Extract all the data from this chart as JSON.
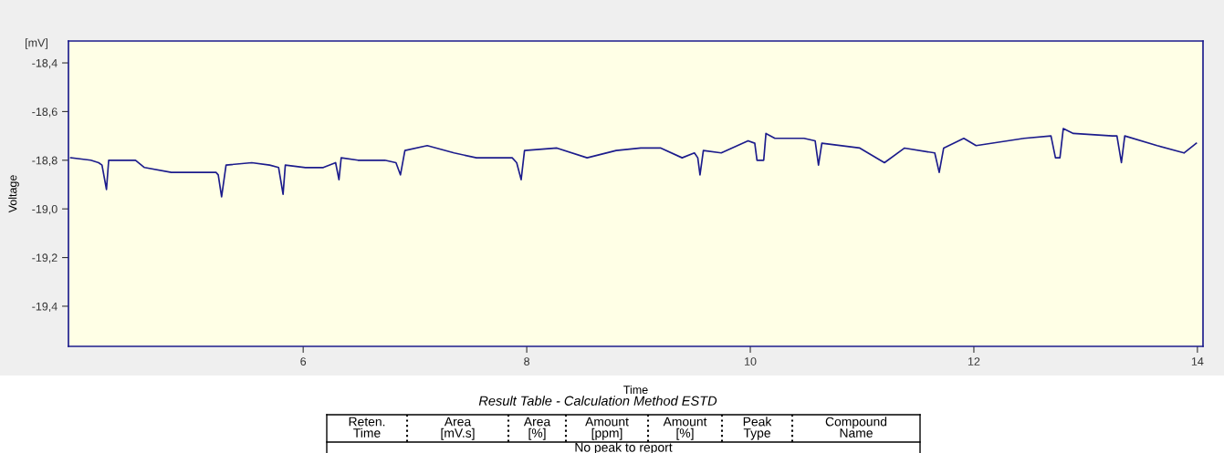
{
  "chart_data": {
    "type": "line",
    "xlabel": "Time",
    "ylabel": "Voltage",
    "x": [
      3.92,
      4.1,
      4.17,
      4.2,
      4.24,
      4.26,
      4.5,
      4.58,
      4.82,
      5.06,
      5.22,
      5.24,
      5.27,
      5.31,
      5.54,
      5.7,
      5.78,
      5.82,
      5.84,
      6.02,
      6.18,
      6.29,
      6.32,
      6.34,
      6.49,
      6.73,
      6.83,
      6.87,
      6.91,
      7.11,
      7.35,
      7.55,
      7.87,
      7.91,
      7.95,
      7.98,
      8.27,
      8.54,
      8.8,
      9.02,
      9.2,
      9.39,
      9.5,
      9.53,
      9.55,
      9.58,
      9.74,
      9.98,
      10.04,
      10.06,
      10.12,
      10.14,
      10.22,
      10.48,
      10.58,
      10.61,
      10.64,
      10.98,
      11.2,
      11.38,
      11.65,
      11.69,
      11.73,
      11.91,
      12.02,
      12.45,
      12.69,
      12.73,
      12.77,
      12.8,
      12.89,
      13.24,
      13.28,
      13.32,
      13.35,
      13.64,
      13.88,
      13.99
    ],
    "series": [
      {
        "color": "#1c1c8c",
        "values": [
          -18.79,
          -18.8,
          -18.81,
          -18.82,
          -18.92,
          -18.8,
          -18.8,
          -18.83,
          -18.85,
          -18.85,
          -18.85,
          -18.86,
          -18.95,
          -18.82,
          -18.81,
          -18.82,
          -18.83,
          -18.94,
          -18.82,
          -18.83,
          -18.83,
          -18.81,
          -18.88,
          -18.79,
          -18.8,
          -18.8,
          -18.81,
          -18.86,
          -18.76,
          -18.74,
          -18.77,
          -18.79,
          -18.79,
          -18.81,
          -18.88,
          -18.76,
          -18.75,
          -18.79,
          -18.76,
          -18.75,
          -18.75,
          -18.79,
          -18.77,
          -18.79,
          -18.86,
          -18.76,
          -18.77,
          -18.72,
          -18.73,
          -18.8,
          -18.8,
          -18.69,
          -18.71,
          -18.71,
          -18.72,
          -18.82,
          -18.73,
          -18.75,
          -18.81,
          -18.75,
          -18.77,
          -18.85,
          -18.75,
          -18.71,
          -18.74,
          -18.71,
          -18.7,
          -18.79,
          -18.79,
          -18.67,
          -18.69,
          -18.7,
          -18.7,
          -18.81,
          -18.7,
          -18.74,
          -18.77,
          -18.73
        ]
      }
    ],
    "xlim": [
      3.9,
      14.05
    ],
    "xticks": [
      6,
      8,
      10,
      12,
      14
    ],
    "ylim": [
      -19.565,
      -18.31
    ],
    "yticks": [
      {
        "value": -18.4,
        "label": "-18,4"
      },
      {
        "value": -18.6,
        "label": "-18,6"
      },
      {
        "value": -18.8,
        "label": "-18,8"
      },
      {
        "value": -19.0,
        "label": "-19,0"
      },
      {
        "value": -19.2,
        "label": "-19,2"
      },
      {
        "value": -19.4,
        "label": "-19,4"
      }
    ],
    "annotations": [
      "[mV]",
      "Result Table - Calculation Method ESTD",
      "Reten.\nTime",
      "Area\n[mV.s]",
      "Area\n[%]",
      "Amount\n[ppm]",
      "Amount\n[%]",
      "Peak\nType",
      "Compound\nName",
      "No peak to report"
    ]
  }
}
